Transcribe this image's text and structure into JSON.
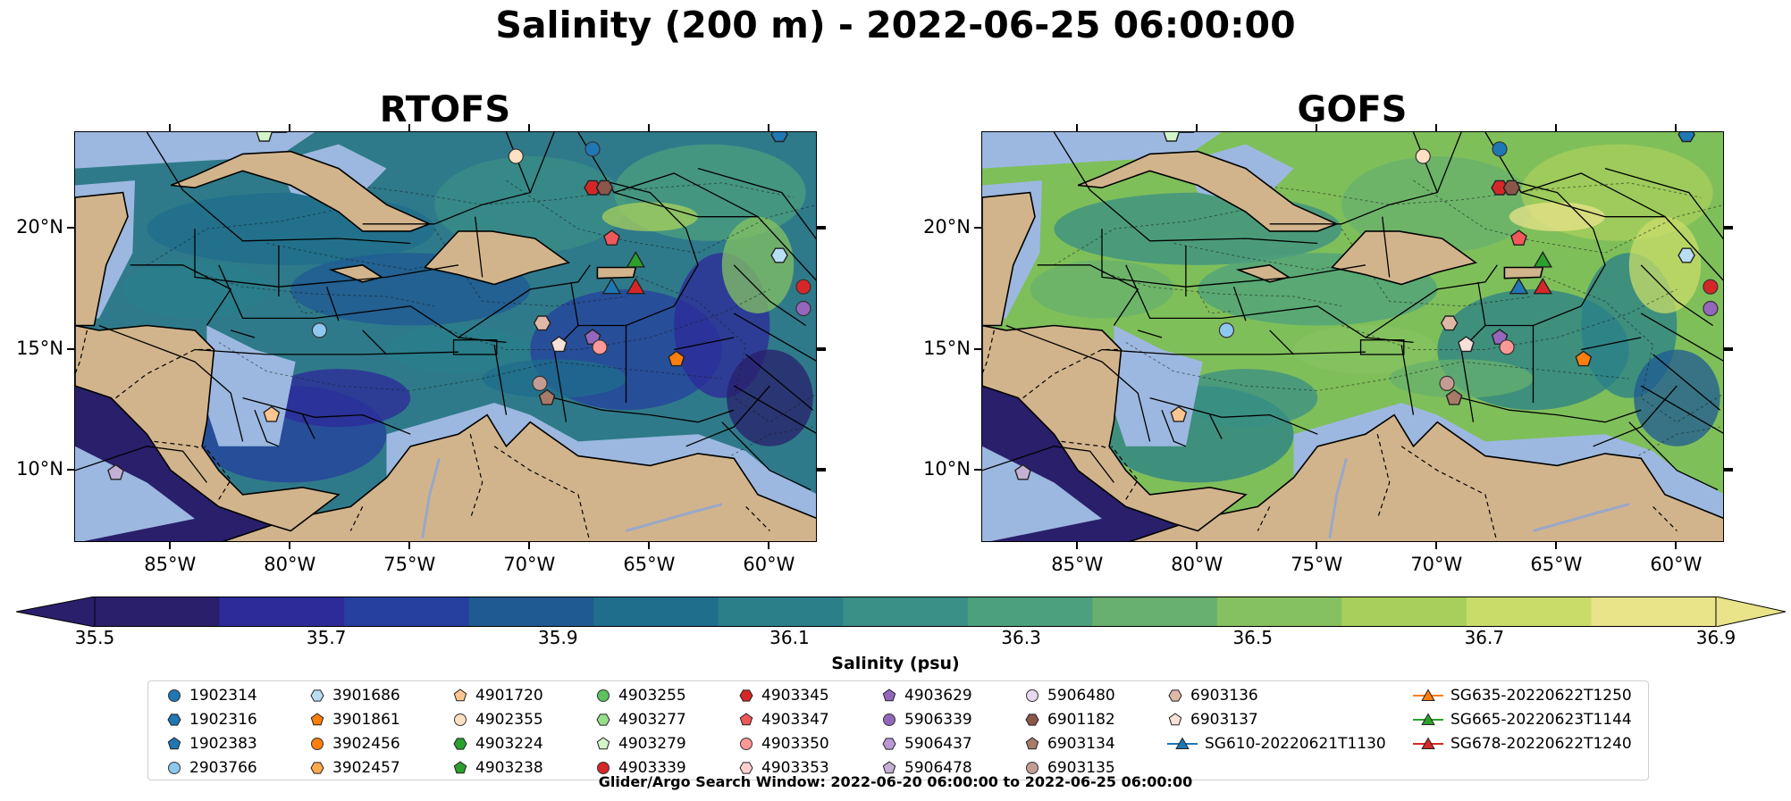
{
  "figure": {
    "title": "Salinity (200 m) - 2022-06-25 06:00:00",
    "footer": "Glider/Argo Search Window: 2022-06-20 06:00:00 to 2022-06-25 06:00:00"
  },
  "panels": [
    {
      "title": "RTOFS",
      "base_color": "#2f7a8a"
    },
    {
      "title": "GOFS",
      "base_color": "#7fbf5a"
    }
  ],
  "axes": {
    "lon_range": [
      -89,
      -58
    ],
    "lat_range": [
      7,
      24
    ],
    "lon_ticks": [
      {
        "value": -85,
        "label": "85°W"
      },
      {
        "value": -80,
        "label": "80°W"
      },
      {
        "value": -75,
        "label": "75°W"
      },
      {
        "value": -70,
        "label": "70°W"
      },
      {
        "value": -65,
        "label": "65°W"
      },
      {
        "value": -60,
        "label": "60°W"
      }
    ],
    "lat_ticks": [
      {
        "value": 20,
        "label": "20°N"
      },
      {
        "value": 15,
        "label": "15°N"
      },
      {
        "value": 10,
        "label": "10°N"
      }
    ]
  },
  "colorbar": {
    "label": "Salinity (psu)",
    "min": 35.5,
    "max": 36.9,
    "colors": [
      "#2a1f6b",
      "#2d2a9a",
      "#25409e",
      "#1f5a93",
      "#1f6e8c",
      "#2a7f89",
      "#3a8f86",
      "#4da07e",
      "#67b06f",
      "#86c161",
      "#a8cf5c",
      "#c9dc6a",
      "#e9e38a"
    ],
    "ticks": [
      {
        "value": 35.5,
        "label": "35.5"
      },
      {
        "value": 35.7,
        "label": "35.7"
      },
      {
        "value": 35.9,
        "label": "35.9"
      },
      {
        "value": 36.1,
        "label": "36.1"
      },
      {
        "value": 36.3,
        "label": "36.3"
      },
      {
        "value": 36.5,
        "label": "36.5"
      },
      {
        "value": 36.7,
        "label": "36.7"
      },
      {
        "value": 36.9,
        "label": "36.9"
      }
    ]
  },
  "colors": {
    "land": "#d2b48c",
    "shelf": "#9cb8e0",
    "deep_west": "#2a1f6b"
  },
  "legend": {
    "columns": [
      [
        {
          "label": "1902314",
          "marker": "circle",
          "color": "#1f77b4"
        },
        {
          "label": "1902316",
          "marker": "hexagon",
          "color": "#1f77b4"
        },
        {
          "label": "1902383",
          "marker": "pentagon",
          "color": "#1f77b4"
        },
        {
          "label": "2903766",
          "marker": "circle",
          "color": "#8ec7ef"
        }
      ],
      [
        {
          "label": "3901686",
          "marker": "hexagon",
          "color": "#b7def5"
        },
        {
          "label": "3901861",
          "marker": "pentagon",
          "color": "#ff7f0e"
        },
        {
          "label": "3902456",
          "marker": "circle",
          "color": "#ff7f0e"
        },
        {
          "label": "3902457",
          "marker": "hexagon",
          "color": "#ffa94d"
        }
      ],
      [
        {
          "label": "4901720",
          "marker": "pentagon",
          "color": "#ffc58f"
        },
        {
          "label": "4902355",
          "marker": "circle",
          "color": "#ffe0c2"
        },
        {
          "label": "4903224",
          "marker": "hexagon",
          "color": "#2ca02c"
        },
        {
          "label": "4903238",
          "marker": "pentagon",
          "color": "#2ca02c"
        }
      ],
      [
        {
          "label": "4903255",
          "marker": "circle",
          "color": "#5cc35c"
        },
        {
          "label": "4903277",
          "marker": "hexagon",
          "color": "#98df8a"
        },
        {
          "label": "4903279",
          "marker": "pentagon",
          "color": "#d4f5c8"
        },
        {
          "label": "4903339",
          "marker": "circle",
          "color": "#d62728"
        }
      ],
      [
        {
          "label": "4903345",
          "marker": "hexagon",
          "color": "#d62728"
        },
        {
          "label": "4903347",
          "marker": "pentagon",
          "color": "#f0585a"
        },
        {
          "label": "4903350",
          "marker": "circle",
          "color": "#ff9896"
        },
        {
          "label": "4903353",
          "marker": "hexagon",
          "color": "#ffd0cf"
        }
      ],
      [
        {
          "label": "4903629",
          "marker": "pentagon",
          "color": "#9467bd"
        },
        {
          "label": "5906339",
          "marker": "circle",
          "color": "#9467bd"
        },
        {
          "label": "5906437",
          "marker": "hexagon",
          "color": "#b89ad6"
        },
        {
          "label": "5906478",
          "marker": "pentagon",
          "color": "#c5b0d5"
        }
      ],
      [
        {
          "label": "5906480",
          "marker": "circle",
          "color": "#e6d9f0"
        },
        {
          "label": "6901182",
          "marker": "hexagon",
          "color": "#8c564b"
        },
        {
          "label": "6903134",
          "marker": "pentagon",
          "color": "#a87a6a"
        },
        {
          "label": "6903135",
          "marker": "circle",
          "color": "#c49c94"
        }
      ],
      [
        {
          "label": "6903136",
          "marker": "hexagon",
          "color": "#e0b8a8"
        },
        {
          "label": "6903137",
          "marker": "pentagon",
          "color": "#f7e0d8"
        },
        {
          "label": "SG610-20220621T1130",
          "marker": "triangle-line",
          "color": "#1f77b4"
        }
      ],
      [
        {
          "label": "SG635-20220622T1250",
          "marker": "triangle-line",
          "color": "#ff7f0e"
        },
        {
          "label": "SG665-20220623T1144",
          "marker": "triangle-line",
          "color": "#2ca02c"
        },
        {
          "label": "SG678-20220622T1240",
          "marker": "triangle-line",
          "color": "#d62728"
        }
      ]
    ]
  },
  "observations": [
    {
      "id": "1902314",
      "lon": -67.4,
      "lat": 23.3,
      "marker": "circle",
      "color": "#1f77b4"
    },
    {
      "id": "4902355",
      "lon": -70.6,
      "lat": 23.0,
      "marker": "circle",
      "color": "#ffe0c2"
    },
    {
      "id": "4903279",
      "lon": -81.1,
      "lat": 23.9,
      "marker": "pentagon",
      "color": "#d4f5c8"
    },
    {
      "id": "1902316",
      "lon": -59.6,
      "lat": 23.9,
      "marker": "hexagon",
      "color": "#1f77b4"
    },
    {
      "id": "4903345",
      "lon": -67.4,
      "lat": 21.7,
      "marker": "hexagon",
      "color": "#d62728"
    },
    {
      "id": "6901182",
      "lon": -66.9,
      "lat": 21.7,
      "marker": "hexagon",
      "color": "#8c564b"
    },
    {
      "id": "4903347",
      "lon": -66.6,
      "lat": 19.6,
      "marker": "pentagon",
      "color": "#f0585a"
    },
    {
      "id": "3901686",
      "lon": -59.6,
      "lat": 18.9,
      "marker": "hexagon",
      "color": "#b7def5"
    },
    {
      "id": "4903339",
      "lon": -58.6,
      "lat": 17.6,
      "marker": "circle",
      "color": "#d62728"
    },
    {
      "id": "5906339",
      "lon": -58.6,
      "lat": 16.7,
      "marker": "circle",
      "color": "#9467bd"
    },
    {
      "id": "6903136",
      "lon": -69.5,
      "lat": 16.1,
      "marker": "hexagon",
      "color": "#e0b8a8"
    },
    {
      "id": "6903137",
      "lon": -68.8,
      "lat": 15.2,
      "marker": "pentagon",
      "color": "#f7e0d8"
    },
    {
      "id": "4903629",
      "lon": -67.4,
      "lat": 15.5,
      "marker": "pentagon",
      "color": "#9467bd"
    },
    {
      "id": "4903350",
      "lon": -67.1,
      "lat": 15.1,
      "marker": "circle",
      "color": "#ff9896"
    },
    {
      "id": "3901861",
      "lon": -63.9,
      "lat": 14.6,
      "marker": "pentagon",
      "color": "#ff7f0e"
    },
    {
      "id": "6903135",
      "lon": -69.6,
      "lat": 13.6,
      "marker": "circle",
      "color": "#c49c94"
    },
    {
      "id": "6903134",
      "lon": -69.3,
      "lat": 13.0,
      "marker": "pentagon",
      "color": "#a87a6a"
    },
    {
      "id": "2903766",
      "lon": -78.8,
      "lat": 15.8,
      "marker": "circle",
      "color": "#8ec7ef"
    },
    {
      "id": "4901720",
      "lon": -80.8,
      "lat": 12.3,
      "marker": "pentagon",
      "color": "#ffc58f"
    },
    {
      "id": "5906478",
      "lon": -87.3,
      "lat": 9.9,
      "marker": "pentagon",
      "color": "#c5b0d5"
    },
    {
      "id": "SG610-20220621T1130",
      "lon": -66.6,
      "lat": 17.6,
      "marker": "triangle",
      "color": "#1f77b4"
    },
    {
      "id": "SG665-20220623T1144",
      "lon": -65.6,
      "lat": 18.7,
      "marker": "triangle",
      "color": "#2ca02c"
    },
    {
      "id": "SG678-20220622T1240",
      "lon": -65.6,
      "lat": 17.6,
      "marker": "triangle",
      "color": "#d62728"
    }
  ]
}
